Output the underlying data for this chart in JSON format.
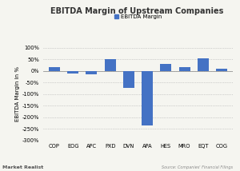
{
  "title": "EBITDA Margin of Upstream Companies",
  "ylabel": "EBITDA Margin in %",
  "legend_label": "EBITDA Margin",
  "categories": [
    "COP",
    "EOG",
    "APC",
    "PXD",
    "DVN",
    "APA",
    "HES",
    "MRO",
    "EQT",
    "COG"
  ],
  "values": [
    15,
    -10,
    -15,
    50,
    -75,
    -235,
    30,
    15,
    55,
    10
  ],
  "bar_color": "#4472C4",
  "background_color": "#f5f5f0",
  "ylim": [
    -300,
    100
  ],
  "yticks": [
    100,
    50,
    0,
    -50,
    -100,
    -150,
    -200,
    -250,
    -300
  ],
  "ytick_labels": [
    "100%",
    "50%",
    "0%",
    "-50%",
    "-100%",
    "-150%",
    "-200%",
    "-250%",
    "-300%"
  ],
  "source_text": "Source: Companies' Financial Filings",
  "watermark": "Market Realist",
  "title_fontsize": 7.0,
  "axis_fontsize": 5.0,
  "tick_fontsize": 4.8,
  "legend_fontsize": 5.0
}
